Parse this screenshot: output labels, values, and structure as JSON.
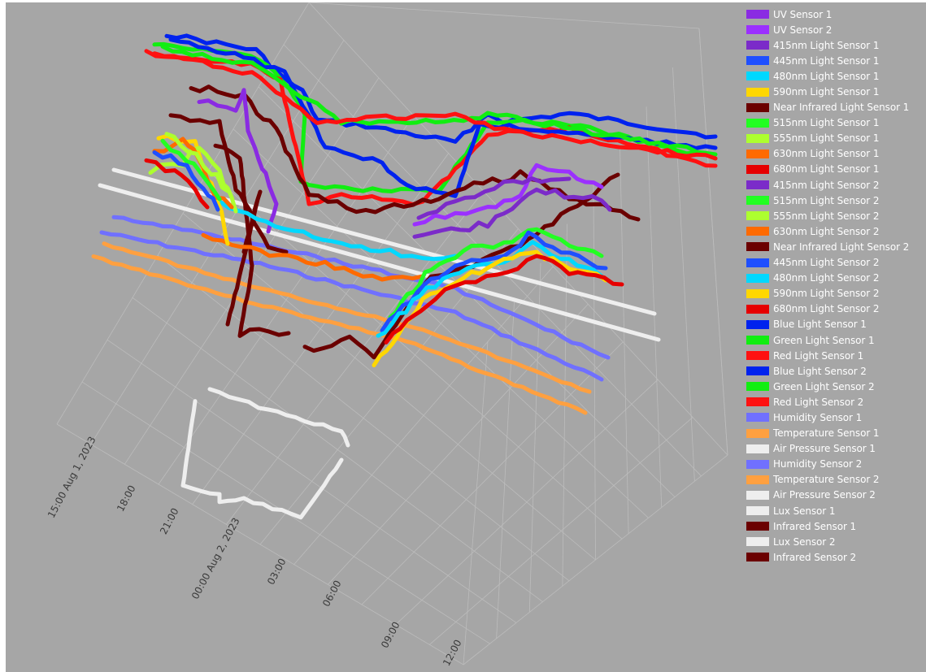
{
  "chart_data": {
    "type": "line",
    "dimension": "3d",
    "title": "",
    "xlabel": "",
    "ylabel": "",
    "zlabel": "",
    "x_ticks": [
      "15:00 Aug 1, 2023",
      "18:00",
      "21:00",
      "00:00 Aug 2, 2023",
      "03:00",
      "06:00",
      "09:00",
      "12:00"
    ],
    "legend_position": "right",
    "grid": true,
    "background_color": "#a6a6a6",
    "series": [
      {
        "name": "UV Sensor 1",
        "color": "#8a2be2"
      },
      {
        "name": "UV Sensor 2",
        "color": "#9b30ff"
      },
      {
        "name": "415nm Light Sensor 1",
        "color": "#7b2bc9"
      },
      {
        "name": "445nm Light Sensor 1",
        "color": "#1f4fff"
      },
      {
        "name": "480nm Light Sensor 1",
        "color": "#00d8ff"
      },
      {
        "name": "590nm Light Sensor 1",
        "color": "#ffd700"
      },
      {
        "name": "Near Infrared Light Sensor 1",
        "color": "#6b0000"
      },
      {
        "name": "515nm Light Sensor 1",
        "color": "#22ff22"
      },
      {
        "name": "555nm Light Sensor 1",
        "color": "#adff2f"
      },
      {
        "name": "630nm Light Sensor 1",
        "color": "#ff6a00"
      },
      {
        "name": "680nm Light Sensor 1",
        "color": "#e60000"
      },
      {
        "name": "415nm Light Sensor 2",
        "color": "#7b2bc9"
      },
      {
        "name": "515nm Light Sensor 2",
        "color": "#22ff22"
      },
      {
        "name": "555nm Light Sensor 2",
        "color": "#adff2f"
      },
      {
        "name": "630nm Light Sensor 2",
        "color": "#ff6a00"
      },
      {
        "name": "Near Infrared Light Sensor 2",
        "color": "#6b0000"
      },
      {
        "name": "445nm Light Sensor 2",
        "color": "#1f4fff"
      },
      {
        "name": "480nm Light Sensor 2",
        "color": "#00d8ff"
      },
      {
        "name": "590nm Light Sensor 2",
        "color": "#ffd700"
      },
      {
        "name": "680nm Light Sensor 2",
        "color": "#e60000"
      },
      {
        "name": "Blue Light Sensor 1",
        "color": "#0022ee"
      },
      {
        "name": "Green Light Sensor 1",
        "color": "#11ee11"
      },
      {
        "name": "Red Light Sensor 1",
        "color": "#ff1111"
      },
      {
        "name": "Blue Light Sensor 2",
        "color": "#0022ee"
      },
      {
        "name": "Green Light Sensor 2",
        "color": "#11ee11"
      },
      {
        "name": "Red Light Sensor 2",
        "color": "#ff1111"
      },
      {
        "name": "Humidity Sensor 1",
        "color": "#7070ff"
      },
      {
        "name": "Temperature Sensor 1",
        "color": "#ffa040"
      },
      {
        "name": "Air Pressure Sensor 1",
        "color": "#eeeeee"
      },
      {
        "name": "Humidity Sensor 2",
        "color": "#7070ff"
      },
      {
        "name": "Temperature Sensor 2",
        "color": "#ffa040"
      },
      {
        "name": "Air Pressure Sensor 2",
        "color": "#eeeeee"
      },
      {
        "name": "Lux Sensor 1",
        "color": "#eeeeee"
      },
      {
        "name": "Infrared Sensor 1",
        "color": "#6b0000"
      },
      {
        "name": "Lux Sensor 2",
        "color": "#eeeeee"
      },
      {
        "name": "Infrared Sensor 2",
        "color": "#6b0000"
      }
    ]
  }
}
